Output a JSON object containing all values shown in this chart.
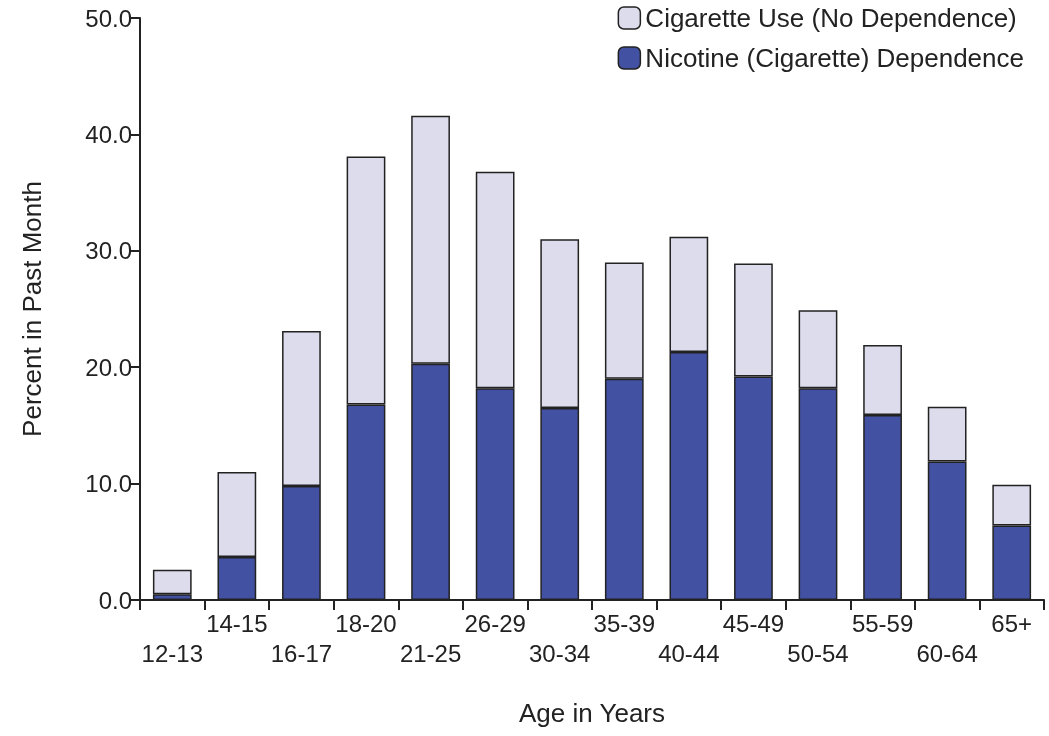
{
  "chart_data": {
    "type": "bar",
    "stacked": true,
    "xlabel": "Age in Years",
    "ylabel": "Percent in Past Month",
    "categories": [
      "12-13",
      "14-15",
      "16-17",
      "18-20",
      "21-25",
      "26-29",
      "30-34",
      "35-39",
      "40-44",
      "45-49",
      "50-54",
      "55-59",
      "60-64",
      "65+"
    ],
    "series": [
      {
        "name": "Nicotine (Cigarette) Dependence",
        "color": "#4351a3",
        "values": [
          0.5,
          3.7,
          9.8,
          16.8,
          20.3,
          18.2,
          16.5,
          19.0,
          21.3,
          19.2,
          18.2,
          15.9,
          11.9,
          6.4
        ]
      },
      {
        "name": "Cigarette Use (No Dependence)",
        "color": "#dcdcec",
        "values": [
          2.1,
          7.3,
          13.3,
          21.3,
          21.3,
          18.6,
          14.5,
          10.0,
          9.9,
          9.7,
          6.7,
          6.0,
          4.7,
          3.5
        ]
      }
    ],
    "ylim": [
      0,
      50
    ],
    "yticks": [
      {
        "value": 0,
        "label": "0.0"
      },
      {
        "value": 10,
        "label": "10.0"
      },
      {
        "value": 20,
        "label": "20.0"
      },
      {
        "value": 30,
        "label": "30.0"
      },
      {
        "value": 40,
        "label": "40.0"
      },
      {
        "value": 50,
        "label": "50.0"
      }
    ],
    "grid": false,
    "legend": "top right"
  }
}
